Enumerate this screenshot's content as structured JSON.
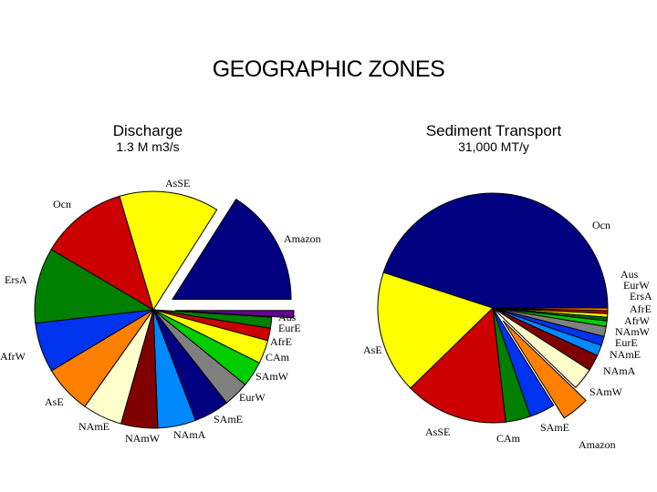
{
  "title": "GEOGRAPHIC ZONES",
  "colors": {
    "navy": "#000080",
    "yellow": "#ffff00",
    "red": "#cc0000",
    "green": "#008000",
    "blue": "#0033ee",
    "orange": "#ff8000",
    "cream": "#ffffcc",
    "maroon": "#800000",
    "azure": "#0088ff",
    "gray": "#808080",
    "lime": "#00cc00",
    "purple": "#660099",
    "darkgreen": "#006600"
  },
  "chart_data": [
    {
      "type": "pie",
      "title": "Discharge",
      "subtitle": "1.3 M m3/s",
      "slices": [
        {
          "label": "Amazon",
          "value": 16.0,
          "color": "#000080",
          "exploded": true
        },
        {
          "label": "Aus",
          "value": 1.0,
          "color": "#660099",
          "exploded": true
        },
        {
          "label": "EurE",
          "value": 1.5,
          "color": "#008000"
        },
        {
          "label": "AfrE",
          "value": 1.7,
          "color": "#cc0000"
        },
        {
          "label": "CAm",
          "value": 3.2,
          "color": "#ffff00"
        },
        {
          "label": "SAmW",
          "value": 3.5,
          "color": "#00cc00"
        },
        {
          "label": "EurW",
          "value": 3.5,
          "color": "#808080"
        },
        {
          "label": "SAmE",
          "value": 4.8,
          "color": "#000080"
        },
        {
          "label": "NAmA",
          "value": 5.2,
          "color": "#0088ff"
        },
        {
          "label": "NAmW",
          "value": 5.0,
          "color": "#800000"
        },
        {
          "label": "NAmE",
          "value": 5.4,
          "color": "#ffffcc"
        },
        {
          "label": "AsE",
          "value": 6.6,
          "color": "#ff8000"
        },
        {
          "label": "AfrW",
          "value": 6.8,
          "color": "#0033ee"
        },
        {
          "label": "ErsA",
          "value": 10.3,
          "color": "#008000"
        },
        {
          "label": "Ocn",
          "value": 11.9,
          "color": "#cc0000"
        },
        {
          "label": "AsSE",
          "value": 13.6,
          "color": "#ffff00"
        }
      ]
    },
    {
      "type": "pie",
      "title": "Sediment Transport",
      "subtitle": "31,000 MT/y",
      "slices": [
        {
          "label": "Ocn",
          "value": 45.0,
          "color": "#000080"
        },
        {
          "label": "Aus",
          "value": 0.4,
          "color": "#ff8000"
        },
        {
          "label": "EurW",
          "value": 0.4,
          "color": "#cc0000"
        },
        {
          "label": "ErsA",
          "value": 0.5,
          "color": "#ffff00"
        },
        {
          "label": "AfrE",
          "value": 0.5,
          "color": "#006600"
        },
        {
          "label": "AfrW",
          "value": 0.8,
          "color": "#00cc00"
        },
        {
          "label": "NAmW",
          "value": 1.4,
          "color": "#808080"
        },
        {
          "label": "EurE",
          "value": 1.3,
          "color": "#0033ee"
        },
        {
          "label": "NAmE",
          "value": 1.5,
          "color": "#0088ff"
        },
        {
          "label": "NAmA",
          "value": 2.3,
          "color": "#800000"
        },
        {
          "label": "SAmW",
          "value": 3.1,
          "color": "#ffffcc"
        },
        {
          "label": "Amazon",
          "value": 3.9,
          "color": "#ff8000",
          "exploded": true
        },
        {
          "label": "SAmE",
          "value": 3.6,
          "color": "#0033ee"
        },
        {
          "label": "CAm",
          "value": 3.5,
          "color": "#008000"
        },
        {
          "label": "AsSE",
          "value": 14.5,
          "color": "#cc0000"
        },
        {
          "label": "AsE",
          "value": 17.3,
          "color": "#ffff00"
        }
      ]
    }
  ]
}
